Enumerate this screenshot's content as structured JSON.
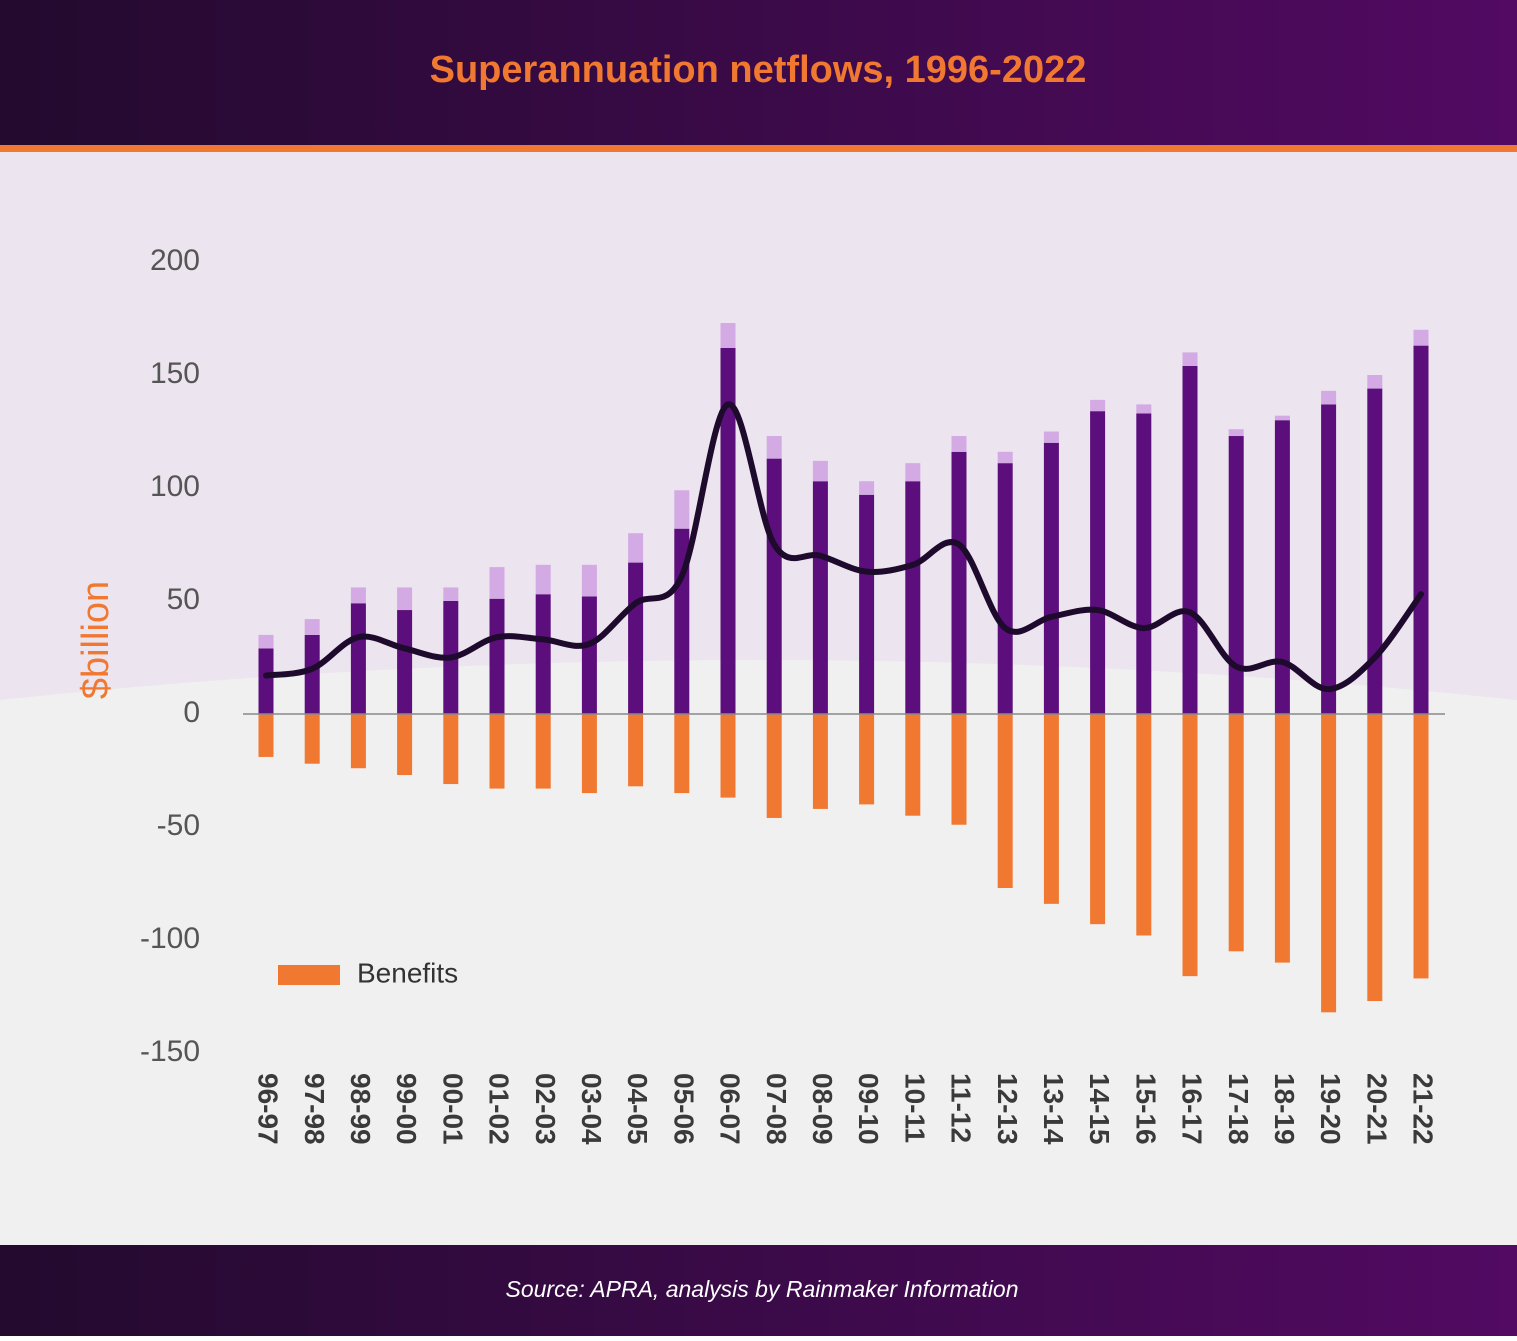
{
  "chart_data": {
    "type": "bar",
    "stacked": true,
    "title": "Superannuation netflows, 1996-2022",
    "y_label": "$billion",
    "source": "Source: APRA, analysis by Rainmaker Information",
    "categories": [
      "96-97",
      "97-98",
      "98-99",
      "99-00",
      "00-01",
      "01-02",
      "02-03",
      "03-04",
      "04-05",
      "05-06",
      "06-07",
      "07-08",
      "08-09",
      "09-10",
      "10-11",
      "11-12",
      "12-13",
      "13-14",
      "14-15",
      "15-16",
      "16-17",
      "17-18",
      "18-19",
      "19-20",
      "20-21",
      "21-22"
    ],
    "series": [
      {
        "color": "#5c0f7c",
        "values": [
          29,
          35,
          49,
          46,
          50,
          51,
          53,
          52,
          67,
          82,
          162,
          113,
          103,
          97,
          103,
          116,
          111,
          120,
          134,
          133,
          154,
          123,
          130,
          137,
          144,
          163
        ]
      },
      {
        "color": "#d3aae4",
        "values": [
          6,
          7,
          7,
          10,
          6,
          14,
          13,
          14,
          13,
          17,
          11,
          10,
          9,
          6,
          8,
          7,
          5,
          5,
          5,
          4,
          6,
          3,
          2,
          6,
          6,
          7
        ]
      },
      {
        "name": "Benefits",
        "color": "#f07830",
        "values": [
          -19,
          -22,
          -24,
          -27,
          -31,
          -33,
          -33,
          -35,
          -32,
          -35,
          -37,
          -46,
          -42,
          -40,
          -45,
          -49,
          -77,
          -84,
          -93,
          -98,
          -116,
          -105,
          -110,
          -132,
          -127,
          -117
        ]
      },
      {
        "type": "line",
        "color": "#1e0a2c",
        "values": [
          17,
          20,
          34,
          29,
          25,
          34,
          33,
          31,
          49,
          61,
          137,
          75,
          70,
          63,
          66,
          75,
          38,
          43,
          46,
          38,
          45,
          21,
          23,
          11,
          25,
          53
        ]
      }
    ],
    "ylim": [
      -150,
      200
    ],
    "yticks": [
      -150,
      -100,
      -50,
      0,
      50,
      100,
      150,
      200
    ],
    "grid": false
  }
}
